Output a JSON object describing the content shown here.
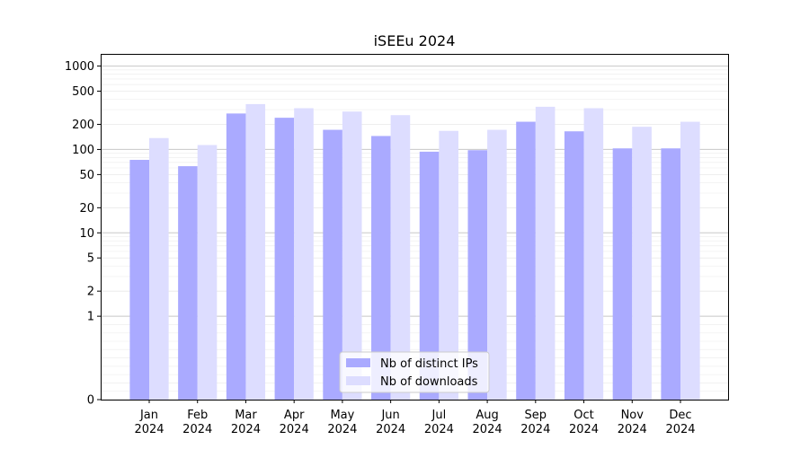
{
  "chart_data": {
    "type": "bar",
    "title": "iSEEu 2024",
    "xlabel": "",
    "ylabel": "",
    "yscale": "symlog",
    "ylim": [
      0,
      1400
    ],
    "grid": true,
    "legend_position": "lower-center",
    "categories": [
      [
        "Jan",
        "2024"
      ],
      [
        "Feb",
        "2024"
      ],
      [
        "Mar",
        "2024"
      ],
      [
        "Apr",
        "2024"
      ],
      [
        "May",
        "2024"
      ],
      [
        "Jun",
        "2024"
      ],
      [
        "Jul",
        "2024"
      ],
      [
        "Aug",
        "2024"
      ],
      [
        "Sep",
        "2024"
      ],
      [
        "Oct",
        "2024"
      ],
      [
        "Nov",
        "2024"
      ],
      [
        "Dec",
        "2024"
      ]
    ],
    "yticks": [
      {
        "value": 0,
        "label": "0"
      },
      {
        "value": 1,
        "label": "1"
      },
      {
        "value": 2,
        "label": "2"
      },
      {
        "value": 5,
        "label": "5"
      },
      {
        "value": 10,
        "label": "10"
      },
      {
        "value": 20,
        "label": "20"
      },
      {
        "value": 50,
        "label": "50"
      },
      {
        "value": 100,
        "label": "100"
      },
      {
        "value": 200,
        "label": "200"
      },
      {
        "value": 500,
        "label": "500"
      },
      {
        "value": 1000,
        "label": "1000"
      }
    ],
    "series": [
      {
        "name": "Nb of distinct IPs",
        "color": "#aaaaff",
        "values": [
          75,
          63,
          270,
          240,
          172,
          145,
          94,
          98,
          215,
          165,
          103,
          103
        ]
      },
      {
        "name": "Nb of downloads",
        "color": "#ddddff",
        "values": [
          137,
          113,
          350,
          312,
          285,
          258,
          167,
          172,
          325,
          312,
          187,
          215
        ]
      }
    ]
  }
}
